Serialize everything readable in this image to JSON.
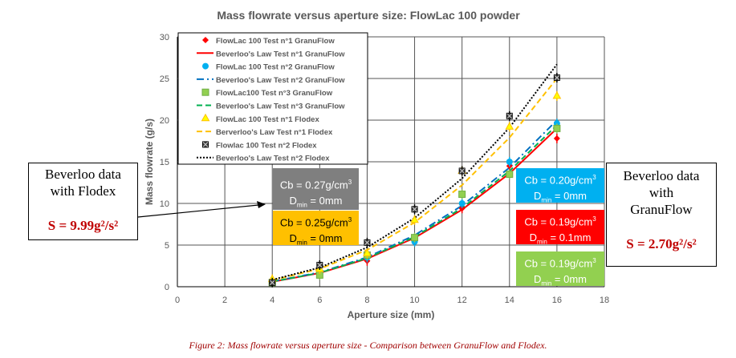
{
  "chart_data": {
    "type": "scatter",
    "title": "Mass flowrate versus aperture size: FlowLac 100 powder",
    "xlabel": "Aperture size (mm)",
    "ylabel": "Mass flowrate (g/s)",
    "xlim": [
      0,
      18
    ],
    "ylim": [
      0,
      30
    ],
    "xticks": [
      0,
      2,
      4,
      6,
      8,
      10,
      12,
      14,
      16,
      18
    ],
    "yticks": [
      0,
      5,
      10,
      15,
      20,
      25,
      30
    ],
    "grid": true,
    "legend_position": "top-left",
    "x": [
      4,
      6,
      8,
      10,
      12,
      14,
      16
    ],
    "series": [
      {
        "name": "FlowLac 100 Test n°1 GranuFlow",
        "kind": "points",
        "marker": "diamond",
        "color": "#ff0000",
        "values": [
          0.6,
          1.6,
          3.1,
          5.6,
          9.4,
          14.5,
          17.8
        ]
      },
      {
        "name": "Beverloo's Law Test n°1 GranuFlow",
        "kind": "line",
        "dash": "solid",
        "color": "#ff0000",
        "values": [
          0.59,
          1.64,
          3.36,
          5.87,
          9.25,
          13.6,
          19.0
        ]
      },
      {
        "name": "FlowLac 100 Test n°2 GranuFlow",
        "kind": "points",
        "marker": "circle",
        "color": "#00b0f0",
        "values": [
          0.6,
          1.6,
          3.5,
          5.4,
          10.0,
          15.0,
          19.6
        ]
      },
      {
        "name": "Beverloo's Law Test n°2 GranuFlow",
        "kind": "line",
        "dash": "dashdot",
        "color": "#0070c0",
        "values": [
          0.63,
          1.72,
          3.54,
          6.18,
          9.74,
          14.3,
          20.0
        ]
      },
      {
        "name": "FlowLac100 Test n°3 GranuFlow",
        "kind": "points",
        "marker": "square",
        "color": "#92d050",
        "values": [
          0.5,
          1.4,
          3.8,
          5.9,
          11.1,
          13.5,
          19.0
        ]
      },
      {
        "name": "Beverloo's Law Test n°3 GranuFlow",
        "kind": "line",
        "dash": "dashed",
        "color": "#00b050",
        "values": [
          0.61,
          1.67,
          3.43,
          5.99,
          9.45,
          13.9,
          19.4
        ]
      },
      {
        "name": "FlowLac 100 Test n°1 Flodex",
        "kind": "points",
        "marker": "triangle",
        "color": "#ffff00",
        "values": [
          0.9,
          2.1,
          4.0,
          8.0,
          13.9,
          19.2,
          22.9
        ]
      },
      {
        "name": "Berverloo's Law Test n°1 Flodex",
        "kind": "line",
        "dash": "dashed",
        "color": "#ffc000",
        "values": [
          0.78,
          2.15,
          4.42,
          7.72,
          12.2,
          17.9,
          25.0
        ]
      },
      {
        "name": "Flowlac 100 Test n°2 Flodex",
        "kind": "points",
        "marker": "x-square",
        "color": "#000000",
        "values": [
          0.5,
          2.6,
          5.3,
          9.3,
          13.9,
          20.5,
          25.1
        ]
      },
      {
        "name": "Beverloo's Law Test n°2 Flodex",
        "kind": "line",
        "dash": "dotted",
        "color": "#000000",
        "values": [
          0.83,
          2.3,
          4.72,
          8.25,
          13.0,
          19.1,
          26.7
        ]
      }
    ],
    "annotations": [
      {
        "cb": "Cb = 0.27g/cm",
        "d": "0mm",
        "bg": "#7f7f7f",
        "fg": "#ffffff"
      },
      {
        "cb": "Cb = 0.25g/cm",
        "d": "0mm",
        "bg": "#ffc000",
        "fg": "#000000"
      },
      {
        "cb": "Cb = 0.20g/cm",
        "d": "0mm",
        "bg": "#00b0f0",
        "fg": "#ffffff"
      },
      {
        "cb": "Cb = 0.19g/cm",
        "d": "0.1mm",
        "bg": "#ff0000",
        "fg": "#ffffff"
      },
      {
        "cb": "Cb = 0.19g/cm",
        "d": "0mm",
        "bg": "#92d050",
        "fg": "#ffffff"
      }
    ]
  },
  "left_note": {
    "l1": "Beverloo data",
    "l2": "with Flodex",
    "s": "S = 9.99g²/s²"
  },
  "right_note": {
    "l1": "Beverloo data",
    "l2": "with",
    "l3": "GranuFlow",
    "s": "S = 2.70g²/s²"
  },
  "caption": "Figure 2: Mass flowrate versus aperture size - Comparison between GranuFlow and Flodex."
}
